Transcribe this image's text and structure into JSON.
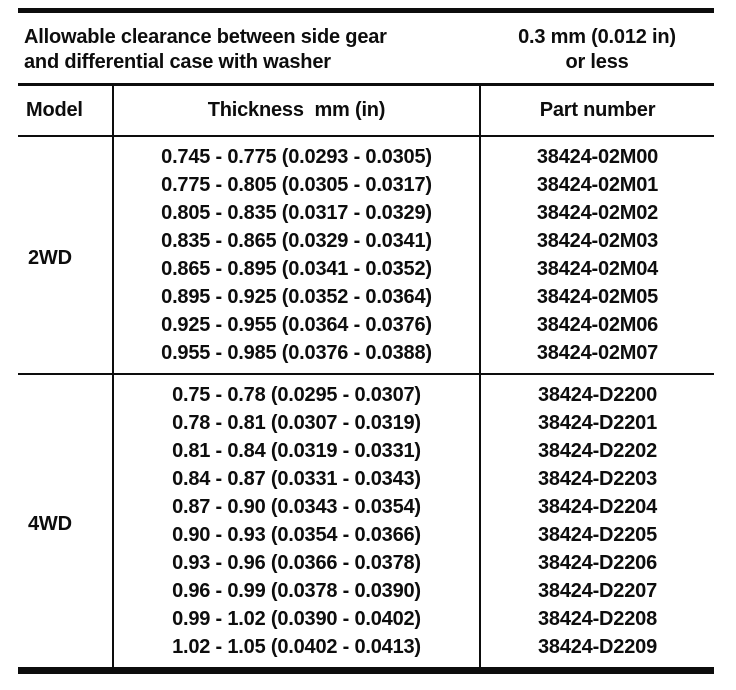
{
  "colors": {
    "ink": "#0d0d0d",
    "paper": "#ffffff"
  },
  "clearance": {
    "label_line1": "Allowable clearance between side gear",
    "label_line2": "and differential case with washer",
    "value_line1": "0.3 mm (0.012 in)",
    "value_line2": "or less"
  },
  "table": {
    "headers": {
      "model": "Model",
      "thickness": "Thickness  mm (in)",
      "part_number": "Part number"
    },
    "sections": [
      {
        "model": "2WD",
        "rows": [
          {
            "thickness": "0.745 - 0.775 (0.0293 - 0.0305)",
            "part_number": "38424-02M00"
          },
          {
            "thickness": "0.775 - 0.805 (0.0305 - 0.0317)",
            "part_number": "38424-02M01"
          },
          {
            "thickness": "0.805 - 0.835 (0.0317 - 0.0329)",
            "part_number": "38424-02M02"
          },
          {
            "thickness": "0.835 - 0.865 (0.0329 - 0.0341)",
            "part_number": "38424-02M03"
          },
          {
            "thickness": "0.865 - 0.895 (0.0341 - 0.0352)",
            "part_number": "38424-02M04"
          },
          {
            "thickness": "0.895 - 0.925 (0.0352 - 0.0364)",
            "part_number": "38424-02M05"
          },
          {
            "thickness": "0.925 - 0.955 (0.0364 - 0.0376)",
            "part_number": "38424-02M06"
          },
          {
            "thickness": "0.955 - 0.985 (0.0376 - 0.0388)",
            "part_number": "38424-02M07"
          }
        ]
      },
      {
        "model": "4WD",
        "rows": [
          {
            "thickness": "0.75 - 0.78 (0.0295 - 0.0307)",
            "part_number": "38424-D2200"
          },
          {
            "thickness": "0.78 - 0.81 (0.0307 - 0.0319)",
            "part_number": "38424-D2201"
          },
          {
            "thickness": "0.81 - 0.84 (0.0319 - 0.0331)",
            "part_number": "38424-D2202"
          },
          {
            "thickness": "0.84 - 0.87 (0.0331 - 0.0343)",
            "part_number": "38424-D2203"
          },
          {
            "thickness": "0.87 - 0.90 (0.0343 - 0.0354)",
            "part_number": "38424-D2204"
          },
          {
            "thickness": "0.90 - 0.93 (0.0354 - 0.0366)",
            "part_number": "38424-D2205"
          },
          {
            "thickness": "0.93 - 0.96 (0.0366 - 0.0378)",
            "part_number": "38424-D2206"
          },
          {
            "thickness": "0.96 - 0.99 (0.0378 - 0.0390)",
            "part_number": "38424-D2207"
          },
          {
            "thickness": "0.99 - 1.02 (0.0390 - 0.0402)",
            "part_number": "38424-D2208"
          },
          {
            "thickness": "1.02 - 1.05 (0.0402 - 0.0413)",
            "part_number": "38424-D2209"
          }
        ]
      }
    ]
  }
}
